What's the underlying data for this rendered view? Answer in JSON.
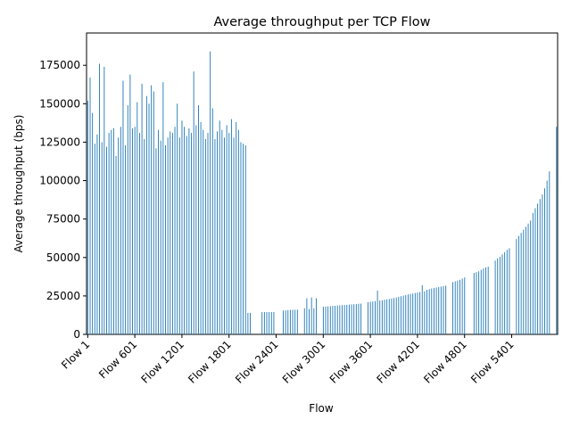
{
  "chart_data": {
    "type": "bar",
    "title": "Average throughput per TCP Flow",
    "x_label": "Flow",
    "y_label": "Average throughput (bps)",
    "color": "#1f77b4",
    "categories": [
      "Flow 1",
      null,
      null,
      null,
      null,
      null,
      null,
      null,
      null,
      null,
      null,
      null,
      null,
      null,
      null,
      null,
      null,
      null,
      null,
      null,
      "Flow 601",
      null,
      null,
      null,
      null,
      null,
      null,
      null,
      null,
      null,
      null,
      null,
      null,
      null,
      null,
      null,
      null,
      null,
      null,
      null,
      "Flow 1201",
      null,
      null,
      null,
      null,
      null,
      null,
      null,
      null,
      null,
      null,
      null,
      null,
      null,
      null,
      null,
      null,
      null,
      null,
      null,
      "Flow 1801",
      null,
      null,
      null,
      null,
      null,
      null,
      null,
      null,
      null,
      null,
      null,
      null,
      null,
      null,
      null,
      null,
      null,
      null,
      null,
      "Flow 2401",
      null,
      null,
      null,
      null,
      null,
      null,
      null,
      null,
      null,
      null,
      null,
      null,
      null,
      null,
      null,
      null,
      null,
      null,
      null,
      "Flow 3001",
      null,
      null,
      null,
      null,
      null,
      null,
      null,
      null,
      null,
      null,
      null,
      null,
      null,
      null,
      null,
      null,
      null,
      null,
      null,
      "Flow 3601",
      null,
      null,
      null,
      null,
      null,
      null,
      null,
      null,
      null,
      null,
      null,
      null,
      null,
      null,
      null,
      null,
      null,
      null,
      null,
      "Flow 4201",
      null,
      null,
      null,
      null,
      null,
      null,
      null,
      null,
      null,
      null,
      null,
      null,
      null,
      null,
      null,
      null,
      null,
      null,
      null,
      "Flow 4801",
      null,
      null,
      null,
      null,
      null,
      null,
      null,
      null,
      null,
      null,
      null,
      null,
      null,
      null,
      null,
      null,
      null,
      null,
      null,
      "Flow 5401",
      null,
      null,
      null,
      null,
      null,
      null,
      null,
      null,
      null,
      null,
      null,
      null,
      null,
      null,
      null,
      null,
      null,
      null,
      null
    ],
    "values": [
      152000,
      167000,
      144000,
      124000,
      130000,
      176000,
      125000,
      174000,
      122000,
      131000,
      133000,
      134000,
      116000,
      128000,
      135000,
      165000,
      123000,
      149000,
      169000,
      134000,
      135000,
      151000,
      131000,
      163000,
      127000,
      155000,
      150000,
      162000,
      158000,
      121000,
      133000,
      126000,
      164000,
      123000,
      128000,
      132000,
      131000,
      135000,
      150000,
      128000,
      139000,
      135000,
      129000,
      134000,
      131000,
      171000,
      136000,
      149000,
      138000,
      133000,
      127000,
      131000,
      184000,
      147000,
      127000,
      132000,
      139000,
      133000,
      128000,
      136000,
      131000,
      140000,
      128000,
      138000,
      133000,
      125000,
      124000,
      123000,
      14000,
      14000,
      0,
      0,
      0,
      0,
      14500,
      14500,
      14500,
      14500,
      14500,
      14500,
      0,
      0,
      0,
      15500,
      15600,
      15800,
      15900,
      16000,
      16000,
      16100,
      0,
      0,
      17000,
      23500,
      16500,
      24000,
      17000,
      23500,
      0,
      0,
      18000,
      18100,
      18200,
      18300,
      18500,
      18600,
      18800,
      18900,
      19000,
      19100,
      19200,
      19400,
      19500,
      19600,
      19700,
      19900,
      20000,
      0,
      0,
      21000,
      21200,
      21400,
      21600,
      28500,
      22000,
      22200,
      22500,
      22800,
      23000,
      23300,
      23600,
      24000,
      24400,
      24800,
      25200,
      25600,
      26000,
      26300,
      26600,
      26900,
      27200,
      27500,
      32000,
      28000,
      29000,
      29400,
      29800,
      30200,
      30500,
      30800,
      31100,
      31400,
      31700,
      0,
      0,
      34000,
      34500,
      35000,
      35500,
      36300,
      37000,
      0,
      0,
      0,
      40000,
      40500,
      41000,
      42000,
      42800,
      43500,
      44000,
      0,
      0,
      48000,
      49500,
      50500,
      52000,
      53500,
      55000,
      56000,
      0,
      0,
      62000,
      64000,
      66000,
      68000,
      70000,
      72000,
      74000,
      79000,
      82000,
      85000,
      88000,
      91000,
      95000,
      100000,
      106000,
      0,
      0,
      135000
    ],
    "ylim": [
      0,
      196000
    ],
    "yticks": [
      0,
      25000,
      50000,
      75000,
      100000,
      125000,
      150000,
      175000
    ]
  }
}
